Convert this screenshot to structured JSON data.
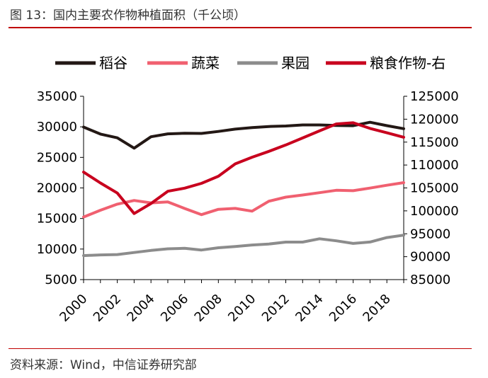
{
  "header": {
    "title": "图 13：国内主要农作物种植面积（千公顷）"
  },
  "footer": {
    "source": "资料来源：Wind，中信证券研究部"
  },
  "colors": {
    "rice": "#231815",
    "vegetables": "#f06070",
    "orchard": "#8c8c8c",
    "grain": "#c8001e",
    "accent_rule": "#c00000"
  },
  "chart_data": {
    "type": "line",
    "title": "国内主要农作物种植面积（千公顷）",
    "x": [
      2000,
      2001,
      2002,
      2003,
      2004,
      2005,
      2006,
      2007,
      2008,
      2009,
      2010,
      2011,
      2012,
      2013,
      2014,
      2015,
      2016,
      2017,
      2018,
      2019
    ],
    "x_tick_labels": [
      "2000",
      "2002",
      "2004",
      "2006",
      "2008",
      "2010",
      "2012",
      "2014",
      "2016",
      "2018"
    ],
    "xlim": [
      2000,
      2019
    ],
    "left_axis": {
      "ylim": [
        5000,
        35000
      ],
      "ticks": [
        "5000",
        "10000",
        "15000",
        "20000",
        "25000",
        "30000",
        "35000"
      ]
    },
    "right_axis": {
      "ylim": [
        85000,
        125000
      ],
      "ticks": [
        "85000",
        "90000",
        "95000",
        "100000",
        "105000",
        "110000",
        "115000",
        "120000",
        "125000"
      ]
    },
    "legend_position": "top",
    "grid": false,
    "series": [
      {
        "name": "稻谷",
        "axis": "left",
        "color": "#231815",
        "values": [
          29962,
          28812,
          28202,
          26508,
          28379,
          28847,
          28938,
          28919,
          29241,
          29627,
          29873,
          30057,
          30137,
          30312,
          30310,
          30216,
          30178,
          30747,
          30189,
          29694
        ]
      },
      {
        "name": "蔬菜",
        "axis": "left",
        "color": "#f06070",
        "values": [
          15237,
          16353,
          17353,
          17954,
          17560,
          17721,
          16639,
          15630,
          16500,
          16652,
          16195,
          17839,
          18497,
          18836,
          19224,
          19613,
          19553,
          19981,
          20439,
          20863
        ]
      },
      {
        "name": "果园",
        "axis": "left",
        "color": "#8c8c8c",
        "values": [
          8932,
          9043,
          9098,
          9437,
          9768,
          10035,
          10123,
          9846,
          10210,
          10408,
          10665,
          10831,
          11140,
          11136,
          11681,
          11350,
          10916,
          11149,
          11875,
          12277
        ]
      },
      {
        "name": "粮食作物-右",
        "axis": "right",
        "color": "#c8001e",
        "values": [
          108463,
          106080,
          103891,
          99410,
          101606,
          104278,
          104958,
          105999,
          107545,
          110255,
          111695,
          112980,
          114368,
          115908,
          117455,
          118963,
          119230,
          117989,
          117038,
          116064
        ]
      }
    ]
  }
}
